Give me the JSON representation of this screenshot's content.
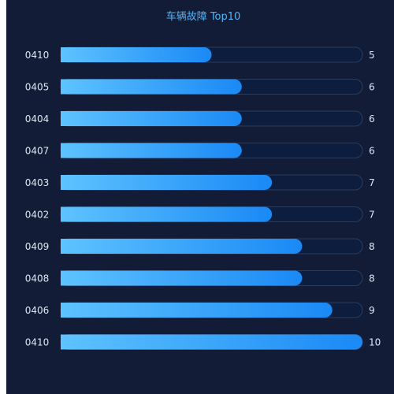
{
  "colors": {
    "panel_bg": "#121c36",
    "title": "#53b2f6",
    "label_text": "#dfe7f5",
    "track_fill": "#0d1d3e",
    "track_stroke": "#2b3d5e",
    "bar_start": "#5ec3ff",
    "bar_end": "#1a89f5"
  },
  "chart_data": {
    "type": "bar",
    "orientation": "horizontal",
    "title": "车辆故障 Top10",
    "categories": [
      "0410",
      "0405",
      "0404",
      "0407",
      "0403",
      "0402",
      "0409",
      "0408",
      "0406",
      "0410"
    ],
    "values": [
      5,
      6,
      6,
      6,
      7,
      7,
      8,
      8,
      9,
      10
    ],
    "xlim": [
      0,
      10
    ],
    "grid": false,
    "legend": "none"
  }
}
